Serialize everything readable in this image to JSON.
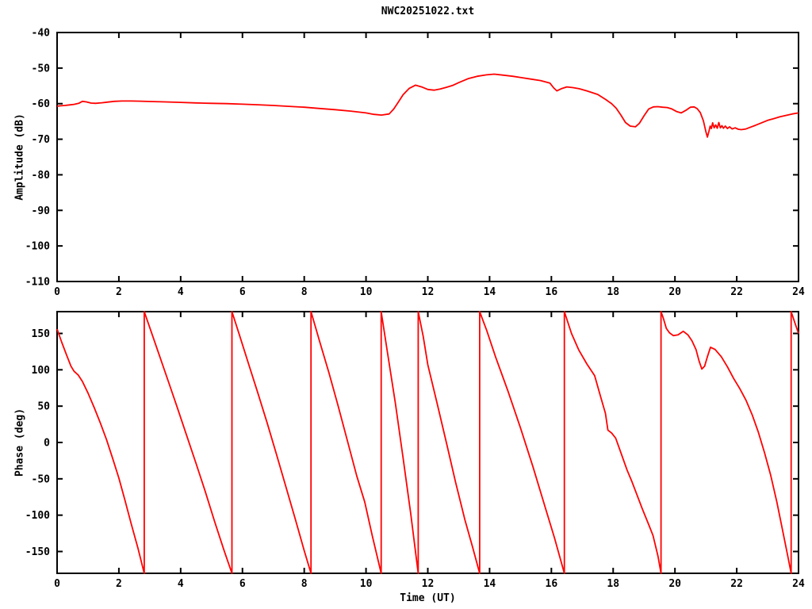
{
  "title": "NWC20251022.txt",
  "colors": {
    "series": "#ff0000",
    "axis": "#000000",
    "background": "#ffffff"
  },
  "chart_data": [
    {
      "type": "line",
      "title": "NWC20251022.txt",
      "xlabel": "",
      "ylabel": "Amplitude (dB)",
      "xlim": [
        0,
        24
      ],
      "ylim": [
        -110,
        -40
      ],
      "xticks": [
        0,
        2,
        4,
        6,
        8,
        10,
        12,
        14,
        16,
        18,
        20,
        22,
        24
      ],
      "yticks": [
        -110,
        -100,
        -90,
        -80,
        -70,
        -60,
        -50,
        -40
      ],
      "grid": false,
      "legend": "none",
      "series": [
        {
          "name": "amplitude",
          "color": "#ff0000",
          "points": [
            [
              0,
              -60.7
            ],
            [
              0.12,
              -60.6
            ],
            [
              0.25,
              -60.5
            ],
            [
              0.4,
              -60.35
            ],
            [
              0.55,
              -60.2
            ],
            [
              0.7,
              -59.9
            ],
            [
              0.82,
              -59.35
            ],
            [
              0.95,
              -59.5
            ],
            [
              1.1,
              -59.85
            ],
            [
              1.25,
              -59.9
            ],
            [
              1.45,
              -59.75
            ],
            [
              1.65,
              -59.55
            ],
            [
              1.85,
              -59.35
            ],
            [
              2.1,
              -59.25
            ],
            [
              2.4,
              -59.25
            ],
            [
              2.7,
              -59.3
            ],
            [
              3.0,
              -59.4
            ],
            [
              3.5,
              -59.5
            ],
            [
              4.0,
              -59.65
            ],
            [
              4.5,
              -59.8
            ],
            [
              5.0,
              -59.9
            ],
            [
              5.5,
              -60.0
            ],
            [
              6.0,
              -60.15
            ],
            [
              6.5,
              -60.3
            ],
            [
              7.0,
              -60.5
            ],
            [
              7.5,
              -60.75
            ],
            [
              8.0,
              -61.0
            ],
            [
              8.5,
              -61.35
            ],
            [
              9.0,
              -61.7
            ],
            [
              9.5,
              -62.1
            ],
            [
              10.0,
              -62.6
            ],
            [
              10.25,
              -63.0
            ],
            [
              10.5,
              -63.2
            ],
            [
              10.75,
              -62.9
            ],
            [
              10.9,
              -61.5
            ],
            [
              11.05,
              -59.5
            ],
            [
              11.2,
              -57.5
            ],
            [
              11.4,
              -55.7
            ],
            [
              11.6,
              -54.8
            ],
            [
              11.8,
              -55.3
            ],
            [
              12.0,
              -56.0
            ],
            [
              12.2,
              -56.2
            ],
            [
              12.4,
              -55.9
            ],
            [
              12.6,
              -55.4
            ],
            [
              12.8,
              -54.9
            ],
            [
              13.0,
              -54.1
            ],
            [
              13.3,
              -53.0
            ],
            [
              13.6,
              -52.3
            ],
            [
              13.9,
              -51.9
            ],
            [
              14.15,
              -51.7
            ],
            [
              14.45,
              -52.0
            ],
            [
              14.75,
              -52.3
            ],
            [
              15.05,
              -52.7
            ],
            [
              15.35,
              -53.1
            ],
            [
              15.65,
              -53.5
            ],
            [
              15.95,
              -54.2
            ],
            [
              16.08,
              -55.6
            ],
            [
              16.18,
              -56.4
            ],
            [
              16.32,
              -55.8
            ],
            [
              16.5,
              -55.3
            ],
            [
              16.7,
              -55.5
            ],
            [
              16.9,
              -55.8
            ],
            [
              17.15,
              -56.4
            ],
            [
              17.5,
              -57.4
            ],
            [
              17.75,
              -58.8
            ],
            [
              17.95,
              -60.0
            ],
            [
              18.1,
              -61.3
            ],
            [
              18.25,
              -63.2
            ],
            [
              18.4,
              -65.3
            ],
            [
              18.55,
              -66.3
            ],
            [
              18.72,
              -66.5
            ],
            [
              18.85,
              -65.5
            ],
            [
              19.0,
              -63.4
            ],
            [
              19.15,
              -61.5
            ],
            [
              19.3,
              -60.9
            ],
            [
              19.45,
              -60.85
            ],
            [
              19.6,
              -61.0
            ],
            [
              19.75,
              -61.1
            ],
            [
              19.9,
              -61.5
            ],
            [
              20.05,
              -62.2
            ],
            [
              20.2,
              -62.6
            ],
            [
              20.35,
              -61.9
            ],
            [
              20.5,
              -61.0
            ],
            [
              20.62,
              -60.9
            ],
            [
              20.72,
              -61.4
            ],
            [
              20.82,
              -62.5
            ],
            [
              20.92,
              -64.8
            ],
            [
              21.0,
              -67.8
            ],
            [
              21.05,
              -69.4
            ],
            [
              21.1,
              -67.8
            ],
            [
              21.14,
              -66.3
            ],
            [
              21.18,
              -67.0
            ],
            [
              21.22,
              -65.4
            ],
            [
              21.27,
              -66.8
            ],
            [
              21.32,
              -66.0
            ],
            [
              21.37,
              -66.9
            ],
            [
              21.42,
              -65.3
            ],
            [
              21.47,
              -66.8
            ],
            [
              21.52,
              -66.2
            ],
            [
              21.57,
              -66.9
            ],
            [
              21.63,
              -66.3
            ],
            [
              21.7,
              -67.0
            ],
            [
              21.77,
              -66.5
            ],
            [
              21.85,
              -67.1
            ],
            [
              21.95,
              -66.8
            ],
            [
              22.05,
              -67.2
            ],
            [
              22.15,
              -67.3
            ],
            [
              22.3,
              -67.1
            ],
            [
              22.45,
              -66.6
            ],
            [
              22.6,
              -66.1
            ],
            [
              22.8,
              -65.4
            ],
            [
              23.0,
              -64.7
            ],
            [
              23.2,
              -64.2
            ],
            [
              23.4,
              -63.7
            ],
            [
              23.6,
              -63.3
            ],
            [
              23.8,
              -62.9
            ],
            [
              24,
              -62.6
            ]
          ]
        }
      ]
    },
    {
      "type": "line",
      "title": "",
      "xlabel": "Time (UT)",
      "ylabel": "Phase (deg)",
      "xlim": [
        0,
        24
      ],
      "ylim": [
        -180,
        180
      ],
      "xticks": [
        0,
        2,
        4,
        6,
        8,
        10,
        12,
        14,
        16,
        18,
        20,
        22,
        24
      ],
      "yticks": [
        -150,
        -100,
        -50,
        0,
        50,
        100,
        150
      ],
      "grid": false,
      "legend": "none",
      "series": [
        {
          "name": "phase",
          "color": "#ff0000",
          "points": [
            [
              0,
              156
            ],
            [
              0.15,
              138
            ],
            [
              0.3,
              121
            ],
            [
              0.45,
              105
            ],
            [
              0.55,
              98
            ],
            [
              0.68,
              93
            ],
            [
              0.82,
              84
            ],
            [
              1.0,
              68
            ],
            [
              1.2,
              48
            ],
            [
              1.4,
              27
            ],
            [
              1.6,
              4
            ],
            [
              1.8,
              -22
            ],
            [
              2.0,
              -49
            ],
            [
              2.2,
              -80
            ],
            [
              2.4,
              -112
            ],
            [
              2.62,
              -146
            ],
            [
              2.82,
              -180
            ],
            [
              2.82,
              180
            ],
            [
              3.0,
              158
            ],
            [
              3.3,
              121
            ],
            [
              3.6,
              84
            ],
            [
              3.9,
              47
            ],
            [
              4.2,
              9
            ],
            [
              4.5,
              -29
            ],
            [
              4.8,
              -68
            ],
            [
              5.1,
              -109
            ],
            [
              5.4,
              -148
            ],
            [
              5.66,
              -180
            ],
            [
              5.66,
              180
            ],
            [
              5.9,
              148
            ],
            [
              6.2,
              108
            ],
            [
              6.5,
              68
            ],
            [
              6.8,
              27
            ],
            [
              7.1,
              -16
            ],
            [
              7.4,
              -60
            ],
            [
              7.7,
              -104
            ],
            [
              8.0,
              -149
            ],
            [
              8.22,
              -180
            ],
            [
              8.22,
              180
            ],
            [
              8.5,
              139
            ],
            [
              8.8,
              96
            ],
            [
              9.1,
              50
            ],
            [
              9.4,
              2
            ],
            [
              9.7,
              -46
            ],
            [
              9.96,
              -82
            ],
            [
              10.2,
              -128
            ],
            [
              10.49,
              -180
            ],
            [
              10.49,
              180
            ],
            [
              10.7,
              122
            ],
            [
              10.95,
              54
            ],
            [
              11.2,
              -21
            ],
            [
              11.45,
              -99
            ],
            [
              11.69,
              -180
            ],
            [
              11.69,
              180
            ],
            [
              11.85,
              146
            ],
            [
              12.0,
              107
            ],
            [
              12.3,
              54
            ],
            [
              12.6,
              0
            ],
            [
              12.9,
              -55
            ],
            [
              13.2,
              -106
            ],
            [
              13.45,
              -144
            ],
            [
              13.68,
              -180
            ],
            [
              13.68,
              180
            ],
            [
              13.9,
              155
            ],
            [
              14.2,
              117
            ],
            [
              14.6,
              70
            ],
            [
              15.0,
              20
            ],
            [
              15.4,
              -33
            ],
            [
              15.8,
              -89
            ],
            [
              16.1,
              -131
            ],
            [
              16.42,
              -180
            ],
            [
              16.42,
              180
            ],
            [
              16.65,
              150
            ],
            [
              16.89,
              127
            ],
            [
              17.15,
              108
            ],
            [
              17.4,
              92
            ],
            [
              17.6,
              62
            ],
            [
              17.75,
              40
            ],
            [
              17.83,
              17
            ],
            [
              17.95,
              13
            ],
            [
              18.08,
              6
            ],
            [
              18.2,
              -8
            ],
            [
              18.45,
              -38
            ],
            [
              18.6,
              -53
            ],
            [
              18.94,
              -91
            ],
            [
              19.15,
              -113
            ],
            [
              19.29,
              -128
            ],
            [
              19.45,
              -156
            ],
            [
              19.55,
              -180
            ],
            [
              19.55,
              180
            ],
            [
              19.63,
              170
            ],
            [
              19.72,
              157
            ],
            [
              19.82,
              151
            ],
            [
              19.95,
              147
            ],
            [
              20.1,
              148
            ],
            [
              20.27,
              153
            ],
            [
              20.42,
              148
            ],
            [
              20.55,
              140
            ],
            [
              20.68,
              128
            ],
            [
              20.78,
              112
            ],
            [
              20.87,
              101
            ],
            [
              20.96,
              105
            ],
            [
              21.05,
              118
            ],
            [
              21.15,
              131
            ],
            [
              21.3,
              128
            ],
            [
              21.5,
              118
            ],
            [
              21.7,
              104
            ],
            [
              21.9,
              88
            ],
            [
              22.1,
              74
            ],
            [
              22.3,
              58
            ],
            [
              22.5,
              38
            ],
            [
              22.7,
              14
            ],
            [
              22.9,
              -14
            ],
            [
              23.1,
              -45
            ],
            [
              23.3,
              -82
            ],
            [
              23.5,
              -124
            ],
            [
              23.65,
              -156
            ],
            [
              23.76,
              -180
            ],
            [
              23.76,
              180
            ],
            [
              23.88,
              165
            ],
            [
              24,
              150
            ]
          ]
        }
      ]
    }
  ]
}
